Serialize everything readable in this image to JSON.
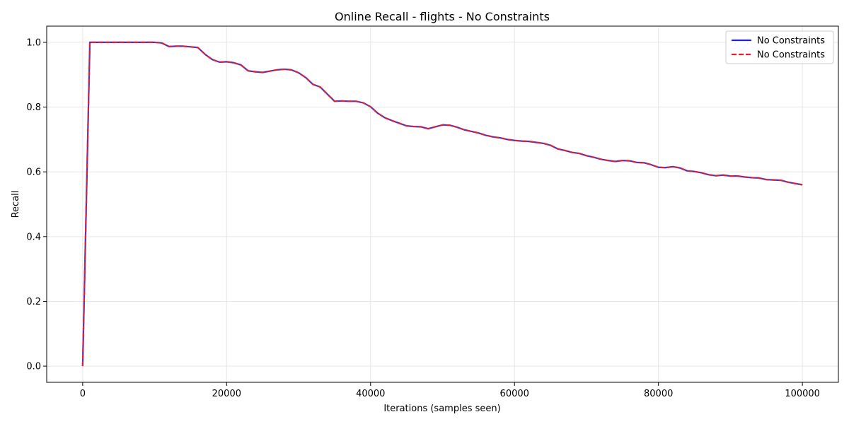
{
  "chart_data": {
    "type": "line",
    "title": "Online Recall - flights - No Constraints",
    "xlabel": "Iterations (samples seen)",
    "ylabel": "Recall",
    "xlim": [
      -5000,
      105000
    ],
    "ylim": [
      -0.05,
      1.05
    ],
    "xticks": [
      0,
      20000,
      40000,
      60000,
      80000,
      100000
    ],
    "yticks": [
      0.0,
      0.2,
      0.4,
      0.6,
      0.8,
      1.0
    ],
    "xtick_labels": [
      "0",
      "20000",
      "40000",
      "60000",
      "80000",
      "100000"
    ],
    "ytick_labels": [
      "0.0",
      "0.2",
      "0.4",
      "0.6",
      "0.8",
      "1.0"
    ],
    "grid": true,
    "legend_position": "top-right",
    "x": [
      0,
      1000,
      2000,
      3000,
      4000,
      5000,
      6000,
      7000,
      8000,
      9000,
      10000,
      11000,
      12000,
      13000,
      14000,
      15000,
      16000,
      17000,
      18000,
      19000,
      20000,
      21000,
      22000,
      23000,
      24000,
      25000,
      26000,
      27000,
      28000,
      29000,
      30000,
      31000,
      32000,
      33000,
      34000,
      35000,
      36000,
      37000,
      38000,
      39000,
      40000,
      41000,
      42000,
      43000,
      44000,
      45000,
      46000,
      47000,
      48000,
      49000,
      50000,
      51000,
      52000,
      53000,
      54000,
      55000,
      56000,
      57000,
      58000,
      59000,
      60000,
      61000,
      62000,
      63000,
      64000,
      65000,
      66000,
      67000,
      68000,
      69000,
      70000,
      71000,
      72000,
      73000,
      74000,
      75000,
      76000,
      77000,
      78000,
      79000,
      80000,
      81000,
      82000,
      83000,
      84000,
      85000,
      86000,
      87000,
      88000,
      89000,
      90000,
      91000,
      92000,
      93000,
      94000,
      95000,
      96000,
      97000,
      98000,
      99000,
      100000
    ],
    "series": [
      {
        "name": "No Constraints",
        "color": "#2020e0",
        "style": "solid",
        "values": [
          0.0,
          1.0,
          1.0,
          1.0,
          1.0,
          1.0,
          1.0,
          1.0,
          1.0,
          1.0,
          1.0,
          0.998,
          0.987,
          0.988,
          0.988,
          0.986,
          0.984,
          0.963,
          0.947,
          0.939,
          0.94,
          0.937,
          0.93,
          0.912,
          0.909,
          0.907,
          0.911,
          0.915,
          0.917,
          0.915,
          0.906,
          0.891,
          0.87,
          0.862,
          0.84,
          0.818,
          0.819,
          0.818,
          0.818,
          0.813,
          0.801,
          0.781,
          0.767,
          0.758,
          0.75,
          0.742,
          0.74,
          0.739,
          0.733,
          0.739,
          0.745,
          0.744,
          0.738,
          0.73,
          0.725,
          0.72,
          0.713,
          0.708,
          0.705,
          0.7,
          0.697,
          0.695,
          0.694,
          0.691,
          0.688,
          0.682,
          0.671,
          0.666,
          0.66,
          0.657,
          0.65,
          0.645,
          0.639,
          0.635,
          0.632,
          0.635,
          0.634,
          0.629,
          0.628,
          0.622,
          0.614,
          0.613,
          0.616,
          0.612,
          0.603,
          0.601,
          0.597,
          0.591,
          0.588,
          0.59,
          0.587,
          0.587,
          0.584,
          0.582,
          0.581,
          0.576,
          0.575,
          0.574,
          0.568,
          0.564,
          0.56
        ]
      },
      {
        "name": "No Constraints",
        "color": "#e8202a",
        "style": "dashed",
        "values": [
          0.0,
          1.0,
          1.0,
          1.0,
          1.0,
          1.0,
          1.0,
          1.0,
          1.0,
          1.0,
          1.0,
          0.998,
          0.987,
          0.988,
          0.988,
          0.986,
          0.984,
          0.963,
          0.947,
          0.939,
          0.94,
          0.937,
          0.93,
          0.912,
          0.909,
          0.907,
          0.911,
          0.915,
          0.917,
          0.915,
          0.906,
          0.891,
          0.87,
          0.862,
          0.84,
          0.818,
          0.819,
          0.818,
          0.818,
          0.813,
          0.801,
          0.781,
          0.767,
          0.758,
          0.75,
          0.742,
          0.74,
          0.739,
          0.733,
          0.739,
          0.745,
          0.744,
          0.738,
          0.73,
          0.725,
          0.72,
          0.713,
          0.708,
          0.705,
          0.7,
          0.697,
          0.695,
          0.694,
          0.691,
          0.688,
          0.682,
          0.671,
          0.666,
          0.66,
          0.657,
          0.65,
          0.645,
          0.639,
          0.635,
          0.632,
          0.635,
          0.634,
          0.629,
          0.628,
          0.622,
          0.614,
          0.613,
          0.616,
          0.612,
          0.603,
          0.601,
          0.597,
          0.591,
          0.588,
          0.59,
          0.587,
          0.587,
          0.584,
          0.582,
          0.581,
          0.576,
          0.575,
          0.574,
          0.568,
          0.564,
          0.56
        ]
      }
    ]
  }
}
